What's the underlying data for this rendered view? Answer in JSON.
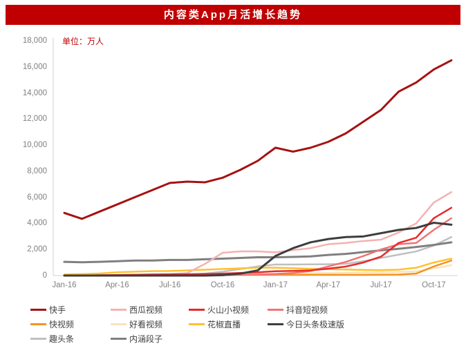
{
  "title": "内容类App月活增长趋势",
  "unit_label": "单位：万人",
  "colors": {
    "banner": "#c00000",
    "axis_line": "#d0d0d0",
    "tick_text": "#7f7f7f",
    "unit_text": "#c00000"
  },
  "y_axis": {
    "ticks": [
      {
        "label": "0",
        "value": 0
      },
      {
        "label": "2,000",
        "value": 2000
      },
      {
        "label": "4,000",
        "value": 4000
      },
      {
        "label": "6,000",
        "value": 6000
      },
      {
        "label": "8,000",
        "value": 8000
      },
      {
        "label": "10,000",
        "value": 10000
      },
      {
        "label": "12,000",
        "value": 12000
      },
      {
        "label": "14,000",
        "value": 14000
      },
      {
        "label": "16,000",
        "value": 16000
      },
      {
        "label": "18,000",
        "value": 18000
      }
    ]
  },
  "x_axis": {
    "ticks": [
      {
        "label": "Jan-16",
        "index": 0
      },
      {
        "label": "Apr-16",
        "index": 3
      },
      {
        "label": "Jul-16",
        "index": 6
      },
      {
        "label": "Oct-16",
        "index": 9
      },
      {
        "label": "Jan-17",
        "index": 12
      },
      {
        "label": "Apr-17",
        "index": 15
      },
      {
        "label": "Jul-17",
        "index": 18
      },
      {
        "label": "Oct-17",
        "index": 21
      }
    ]
  },
  "chart_data": {
    "type": "line",
    "title": "内容类App月活增长趋势",
    "ylabel": "单位：万人",
    "ylim": [
      0,
      18000
    ],
    "grid": false,
    "legend_position": "bottom",
    "categories": [
      "Jan-16",
      "Feb-16",
      "Mar-16",
      "Apr-16",
      "May-16",
      "Jun-16",
      "Jul-16",
      "Aug-16",
      "Sep-16",
      "Oct-16",
      "Nov-16",
      "Dec-16",
      "Jan-17",
      "Feb-17",
      "Mar-17",
      "Apr-17",
      "May-17",
      "Jun-17",
      "Jul-17",
      "Aug-17",
      "Sep-17",
      "Oct-17",
      "Nov-17"
    ],
    "series": [
      {
        "name": "快手",
        "color": "#a61111",
        "width": 3,
        "values": [
          4800,
          4350,
          4900,
          5450,
          6000,
          6550,
          7100,
          7200,
          7150,
          7500,
          8100,
          8800,
          9800,
          9500,
          9800,
          10250,
          10900,
          11800,
          12700,
          14100,
          14800,
          15800,
          16500
        ]
      },
      {
        "name": "西瓜视频",
        "color": "#f5b1b1",
        "width": 2.5,
        "values": [
          0,
          0,
          20,
          40,
          60,
          90,
          110,
          200,
          900,
          1750,
          1850,
          1850,
          1780,
          1950,
          2100,
          2400,
          2500,
          2650,
          2750,
          3300,
          4000,
          5600,
          6400
        ]
      },
      {
        "name": "火山小视频",
        "color": "#e62a2a",
        "width": 2.5,
        "values": [
          0,
          0,
          20,
          40,
          60,
          80,
          90,
          100,
          120,
          150,
          200,
          250,
          330,
          360,
          400,
          530,
          690,
          1000,
          1450,
          2500,
          2900,
          4400,
          5200
        ]
      },
      {
        "name": "抖音短视频",
        "color": "#f07373",
        "width": 2.5,
        "values": [
          0,
          0,
          0,
          0,
          0,
          0,
          0,
          0,
          0,
          30,
          50,
          80,
          120,
          200,
          350,
          700,
          1050,
          1500,
          2000,
          2400,
          2500,
          3500,
          4400
        ]
      },
      {
        "name": "快视频",
        "color": "#f3941e",
        "width": 2.5,
        "values": [
          30,
          30,
          30,
          30,
          30,
          30,
          40,
          40,
          40,
          50,
          50,
          50,
          60,
          60,
          60,
          60,
          60,
          60,
          70,
          80,
          150,
          700,
          1150
        ]
      },
      {
        "name": "好看视频",
        "color": "#fae3bc",
        "width": 2.5,
        "values": [
          0,
          0,
          0,
          0,
          20,
          40,
          60,
          80,
          90,
          100,
          110,
          120,
          140,
          150,
          170,
          190,
          210,
          240,
          260,
          280,
          320,
          550,
          800
        ]
      },
      {
        "name": "花椒直播",
        "color": "#ffc02e",
        "width": 2.5,
        "values": [
          80,
          110,
          160,
          250,
          300,
          340,
          350,
          400,
          450,
          500,
          550,
          600,
          600,
          560,
          520,
          490,
          460,
          430,
          420,
          450,
          600,
          1000,
          1300
        ]
      },
      {
        "name": "今日头条极速版",
        "color": "#3d3d3d",
        "width": 3,
        "values": [
          0,
          0,
          0,
          0,
          0,
          0,
          0,
          0,
          0,
          30,
          150,
          400,
          1500,
          2100,
          2550,
          2800,
          2950,
          3000,
          3250,
          3500,
          3650,
          4050,
          3900
        ]
      },
      {
        "name": "趣头条",
        "color": "#bfbfbf",
        "width": 2.5,
        "values": [
          0,
          0,
          0,
          0,
          20,
          40,
          60,
          90,
          150,
          300,
          500,
          700,
          850,
          850,
          860,
          870,
          900,
          1100,
          1350,
          1600,
          1850,
          2300,
          2950
        ]
      },
      {
        "name": "内涵段子",
        "color": "#7f7f7f",
        "width": 3,
        "values": [
          1050,
          1020,
          1050,
          1100,
          1150,
          1150,
          1200,
          1200,
          1250,
          1300,
          1350,
          1400,
          1400,
          1430,
          1470,
          1580,
          1660,
          1800,
          1930,
          2050,
          2190,
          2350,
          2550
        ]
      }
    ]
  }
}
